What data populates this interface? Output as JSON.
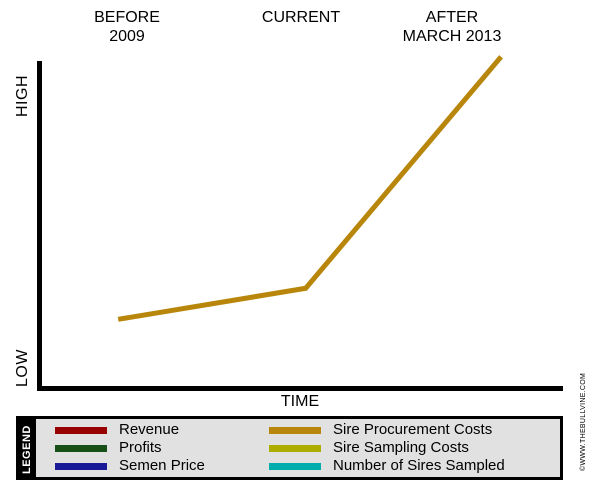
{
  "header": {
    "periods": [
      {
        "label": "BEFORE\n2009"
      },
      {
        "label": "CURRENT"
      },
      {
        "label": "AFTER\nMARCH 2013"
      }
    ]
  },
  "axes": {
    "y_high": "HIGH",
    "y_low": "LOW",
    "x_title": "TIME"
  },
  "watermark": "©WWW.THEBULLVINE.COM",
  "legend": {
    "title": "LEGEND",
    "items": [
      {
        "label": "Revenue",
        "color": "#990000"
      },
      {
        "label": "Profits",
        "color": "#165016"
      },
      {
        "label": "Semen Price",
        "color": "#1a1a99"
      },
      {
        "label": "Sire Procurement Costs",
        "color": "#b8860b"
      },
      {
        "label": "Sire Sampling Costs",
        "color": "#adad00"
      },
      {
        "label": "Number of Sires Sampled",
        "color": "#00acac"
      }
    ]
  },
  "chart_data": {
    "type": "line",
    "title": "",
    "xlabel": "TIME",
    "ylabel": "",
    "y_axis_qualitative": [
      "LOW",
      "HIGH"
    ],
    "ylim": [
      0,
      1
    ],
    "grid": false,
    "legend_position": "bottom",
    "categories": [
      "BEFORE 2009",
      "CURRENT",
      "AFTER MARCH 2013"
    ],
    "x_positions": [
      0.15,
      0.51,
      0.885
    ],
    "series": [
      {
        "name": "Sire Procurement Costs",
        "color": "#b8860b",
        "values": [
          0.21,
          0.305,
          1.013
        ],
        "note": "values normalized on LOW(0)-HIGH(1) qualitative scale; other legend series not plotted"
      }
    ]
  }
}
